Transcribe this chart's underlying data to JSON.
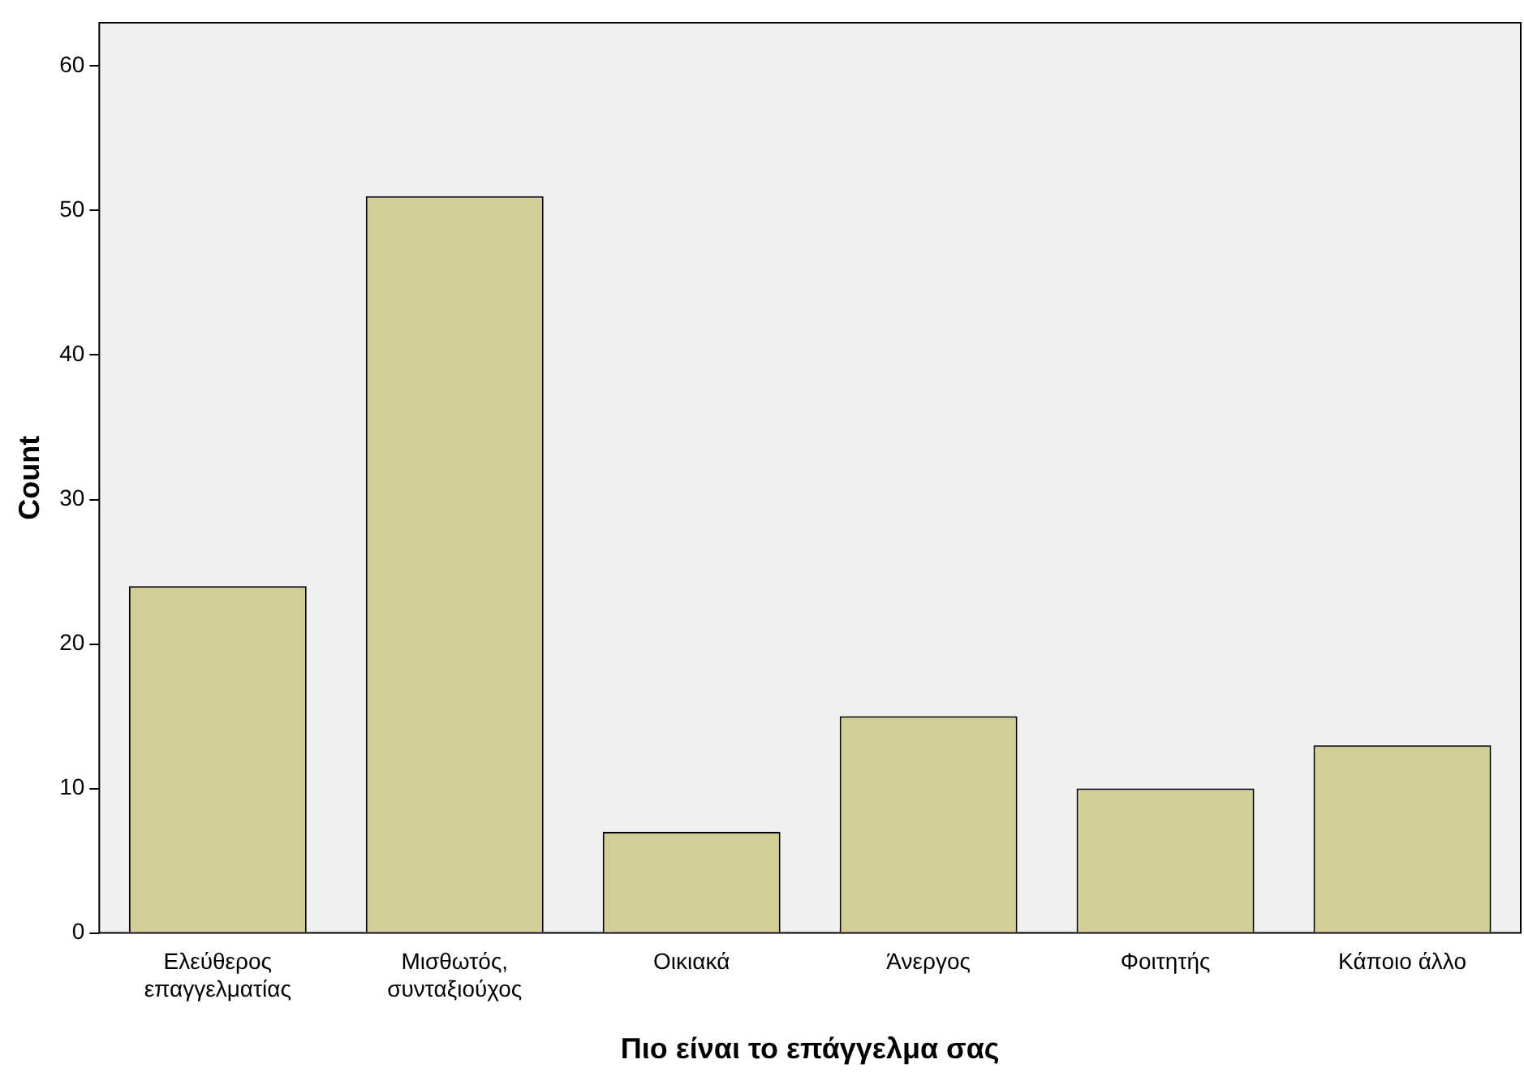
{
  "chart_data": {
    "type": "bar",
    "xlabel": "Πιο είναι το επάγγελμα σας",
    "ylabel": "Count",
    "categories": [
      "Ελεύθερος\nεπαγγελματίας",
      "Μισθωτός,\nσυνταξιούχος",
      "Οικιακά",
      "Άνεργος",
      "Φοιτητής",
      "Κάποιο άλλο"
    ],
    "values": [
      24,
      51,
      7,
      15,
      10,
      13
    ],
    "color": "#d3ce97",
    "ylim": [
      0,
      63
    ],
    "yticks": [
      0,
      10,
      20,
      30,
      40,
      50,
      60
    ],
    "grid": false,
    "legend": false
  }
}
